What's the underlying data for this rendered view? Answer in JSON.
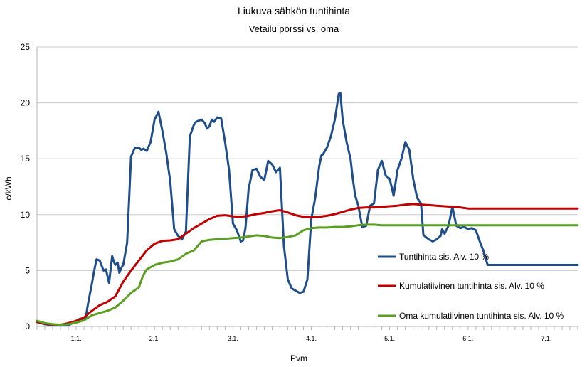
{
  "chart_data": {
    "type": "line",
    "title": "Liukuva sähkön tuntihinta",
    "subtitle": "Vetailu pörssi vs. oma",
    "xlabel": "Pvm",
    "ylabel": "c/kWh",
    "ylim": [
      0,
      25
    ],
    "yticks": [
      0,
      5,
      10,
      15,
      20,
      25
    ],
    "x_tick_labels": [
      "1.1.",
      "2.1.",
      "3.1.",
      "4.1.",
      "5.1.",
      "6.1.",
      "7.1."
    ],
    "x_tick_positions": [
      0.5,
      1.5,
      2.5,
      3.5,
      4.5,
      5.5,
      6.5
    ],
    "xlim": [
      0,
      6.9
    ],
    "grid": "horizontal",
    "legend_position": "right",
    "series": [
      {
        "name": "Tuntihinta sis. Alv. 10 %",
        "color": "#1f4e8c",
        "x": [
          0.0,
          0.1,
          0.2,
          0.3,
          0.4,
          0.45,
          0.5,
          0.55,
          0.6,
          0.62,
          0.65,
          0.7,
          0.73,
          0.76,
          0.8,
          0.85,
          0.88,
          0.92,
          0.96,
          0.98,
          1.0,
          1.03,
          1.05,
          1.08,
          1.1,
          1.15,
          1.2,
          1.25,
          1.3,
          1.33,
          1.36,
          1.4,
          1.45,
          1.5,
          1.55,
          1.6,
          1.65,
          1.7,
          1.75,
          1.8,
          1.85,
          1.9,
          1.95,
          2.0,
          2.03,
          2.06,
          2.1,
          2.14,
          2.17,
          2.2,
          2.23,
          2.26,
          2.3,
          2.35,
          2.4,
          2.45,
          2.5,
          2.55,
          2.6,
          2.63,
          2.66,
          2.7,
          2.75,
          2.8,
          2.85,
          2.9,
          2.95,
          3.0,
          3.05,
          3.1,
          3.15,
          3.2,
          3.25,
          3.3,
          3.35,
          3.4,
          3.45,
          3.5,
          3.55,
          3.6,
          3.63,
          3.65,
          3.7,
          3.75,
          3.8,
          3.85,
          3.87,
          3.9,
          3.95,
          4.0,
          4.03,
          4.06,
          4.1,
          4.15,
          4.2,
          4.25,
          4.3,
          4.35,
          4.4,
          4.45,
          4.5,
          4.55,
          4.6,
          4.65,
          4.7,
          4.75,
          4.8,
          4.85,
          4.9,
          4.93,
          4.96,
          5.0,
          5.05,
          5.1,
          5.15,
          5.17,
          5.2,
          5.25,
          5.3,
          5.35,
          5.4,
          5.45,
          5.5,
          5.55,
          5.6,
          5.65,
          5.7,
          5.75,
          5.8,
          5.85,
          5.9,
          5.95,
          6.0,
          6.05,
          6.1,
          6.15,
          6.2,
          6.25,
          6.3,
          6.35,
          6.4,
          6.45,
          6.5,
          6.55,
          6.6,
          6.65,
          6.7,
          6.75,
          6.8,
          6.85,
          6.9
        ],
        "y": [
          0.4,
          0.2,
          0.1,
          0.1,
          0.1,
          0.3,
          0.5,
          0.7,
          0.6,
          0.7,
          2.0,
          3.8,
          5.0,
          6.0,
          5.9,
          5.0,
          5.1,
          3.9,
          6.3,
          5.8,
          5.5,
          5.7,
          4.8,
          5.3,
          5.5,
          7.5,
          15.2,
          16.0,
          16.0,
          15.8,
          15.9,
          15.7,
          16.5,
          18.5,
          19.2,
          17.5,
          15.5,
          13.0,
          8.7,
          8.1,
          7.8,
          8.5,
          17.0,
          18.0,
          18.3,
          18.4,
          18.5,
          18.2,
          17.7,
          17.9,
          18.5,
          18.3,
          18.7,
          18.6,
          16.5,
          14.0,
          9.2,
          8.6,
          7.6,
          7.7,
          8.8,
          12.3,
          14.0,
          14.1,
          13.4,
          13.1,
          14.8,
          14.5,
          13.8,
          14.2,
          7.2,
          4.2,
          3.4,
          3.2,
          3.0,
          3.1,
          4.2,
          9.6,
          11.5,
          14.3,
          15.3,
          15.4,
          16.0,
          17.0,
          18.5,
          20.8,
          20.9,
          18.5,
          16.5,
          15.0,
          13.2,
          11.7,
          10.8,
          8.9,
          9.0,
          10.8,
          11.0,
          14.0,
          14.8,
          13.5,
          13.2,
          11.7,
          14.0,
          15.0,
          16.5,
          15.8,
          13.2,
          11.5,
          11.0,
          8.2,
          8.0,
          7.8,
          7.6,
          7.8,
          8.1,
          8.7,
          8.3,
          9.0,
          10.7,
          9.0,
          8.8,
          8.9,
          8.7,
          8.8,
          8.6,
          7.6,
          6.7,
          5.5,
          5.5,
          5.5,
          5.5,
          5.5,
          5.5,
          5.5,
          5.5,
          5.5,
          5.5,
          5.5,
          5.5,
          5.5,
          5.5,
          5.5,
          5.5,
          5.5,
          5.5,
          5.5,
          5.5,
          5.5,
          5.5,
          5.5,
          5.5
        ]
      },
      {
        "name": "Kumulatiivinen tuntihinta sis. Alv. 10 %",
        "color": "#c00000",
        "x": [
          0.0,
          0.1,
          0.2,
          0.3,
          0.4,
          0.5,
          0.6,
          0.7,
          0.8,
          0.9,
          1.0,
          1.1,
          1.2,
          1.3,
          1.4,
          1.5,
          1.6,
          1.7,
          1.8,
          1.9,
          2.0,
          2.1,
          2.2,
          2.3,
          2.4,
          2.5,
          2.6,
          2.7,
          2.8,
          2.9,
          3.0,
          3.1,
          3.2,
          3.3,
          3.4,
          3.5,
          3.6,
          3.7,
          3.8,
          3.9,
          4.0,
          4.1,
          4.2,
          4.3,
          4.4,
          4.5,
          4.6,
          4.7,
          4.8,
          4.9,
          5.0,
          5.1,
          5.2,
          5.3,
          5.4,
          5.5,
          5.6,
          5.7,
          5.8,
          5.9,
          6.0,
          6.1,
          6.2,
          6.3,
          6.4,
          6.5,
          6.6,
          6.7,
          6.8,
          6.9
        ],
        "y": [
          0.4,
          0.25,
          0.15,
          0.15,
          0.3,
          0.5,
          0.8,
          1.4,
          1.9,
          2.2,
          2.7,
          4.0,
          5.0,
          5.9,
          6.8,
          7.4,
          7.65,
          7.7,
          7.8,
          8.3,
          8.8,
          9.2,
          9.6,
          9.9,
          9.95,
          9.85,
          9.8,
          9.9,
          10.05,
          10.15,
          10.3,
          10.4,
          10.2,
          9.95,
          9.8,
          9.75,
          9.8,
          9.9,
          10.05,
          10.25,
          10.45,
          10.6,
          10.65,
          10.65,
          10.7,
          10.75,
          10.8,
          10.9,
          10.95,
          10.9,
          10.85,
          10.8,
          10.75,
          10.7,
          10.65,
          10.55,
          10.55,
          10.55,
          10.55,
          10.55,
          10.55,
          10.55,
          10.55,
          10.55,
          10.55,
          10.55,
          10.55,
          10.55,
          10.55,
          10.55
        ]
      },
      {
        "name": "Oma kumulatiivinen tuntihinta sis. Alv. 10 %",
        "color": "#5a9e22",
        "x": [
          0.0,
          0.1,
          0.2,
          0.3,
          0.4,
          0.5,
          0.6,
          0.7,
          0.8,
          0.9,
          1.0,
          1.1,
          1.2,
          1.3,
          1.35,
          1.4,
          1.5,
          1.6,
          1.7,
          1.8,
          1.9,
          2.0,
          2.1,
          2.2,
          2.3,
          2.4,
          2.5,
          2.6,
          2.7,
          2.8,
          2.9,
          3.0,
          3.1,
          3.2,
          3.3,
          3.4,
          3.5,
          3.6,
          3.7,
          3.8,
          3.9,
          4.0,
          4.1,
          4.2,
          4.3,
          4.4,
          4.5,
          4.6,
          4.7,
          4.8,
          4.9,
          5.0,
          5.1,
          5.2,
          5.3,
          5.4,
          5.5,
          5.6,
          5.7,
          5.8,
          5.9,
          6.0,
          6.1,
          6.2,
          6.3,
          6.4,
          6.5,
          6.6,
          6.7,
          6.8,
          6.9
        ],
        "y": [
          0.5,
          0.3,
          0.2,
          0.15,
          0.2,
          0.35,
          0.55,
          1.0,
          1.2,
          1.4,
          1.7,
          2.3,
          3.0,
          3.5,
          4.5,
          5.1,
          5.5,
          5.7,
          5.8,
          6.0,
          6.5,
          6.8,
          7.6,
          7.75,
          7.8,
          7.85,
          7.9,
          7.95,
          8.05,
          8.15,
          8.1,
          7.95,
          7.9,
          8.0,
          8.15,
          8.6,
          8.8,
          8.85,
          8.85,
          8.9,
          8.9,
          8.95,
          9.05,
          9.1,
          9.1,
          9.05,
          9.05,
          9.05,
          9.05,
          9.05,
          9.05,
          9.05,
          9.05,
          9.05,
          9.05,
          9.05,
          9.05,
          9.05,
          9.05,
          9.05,
          9.05,
          9.05,
          9.05,
          9.05,
          9.05,
          9.05,
          9.05,
          9.05,
          9.05,
          9.05,
          9.05
        ]
      }
    ]
  }
}
